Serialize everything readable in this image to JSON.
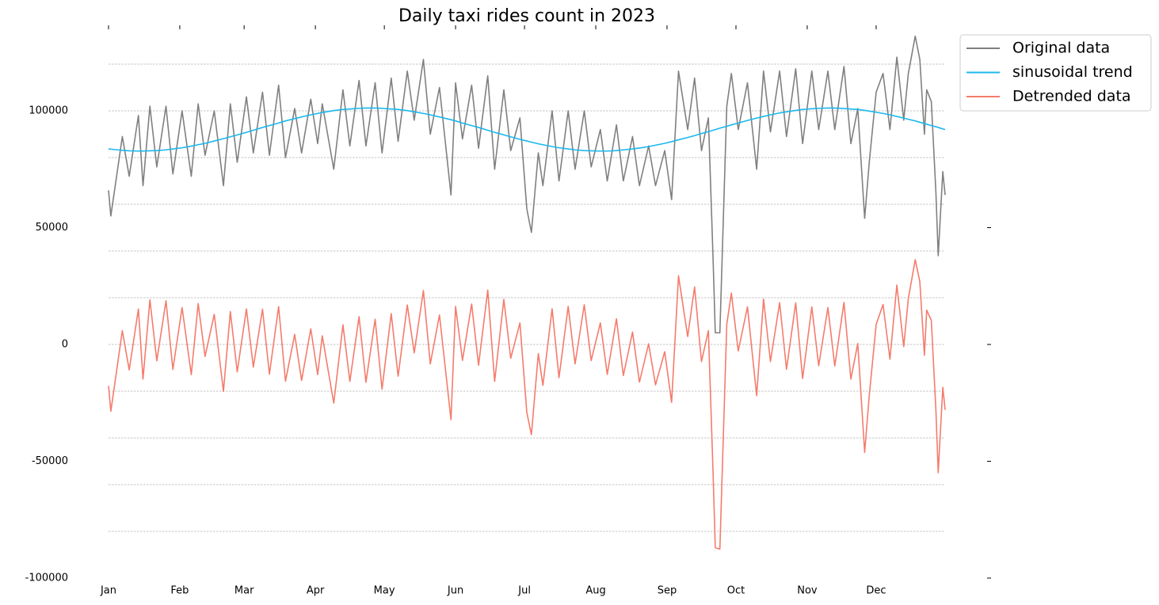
{
  "chart_data": {
    "type": "line",
    "title": "Daily taxi rides count in 2023",
    "x": [
      1,
      2,
      7,
      10,
      14,
      16,
      19,
      22,
      26,
      29,
      33,
      37,
      40,
      43,
      47,
      51,
      54,
      57,
      61,
      64,
      68,
      71,
      75,
      78,
      82,
      85,
      89,
      92,
      94,
      99,
      103,
      106,
      110,
      113,
      117,
      120,
      124,
      127,
      131,
      134,
      138,
      141,
      145,
      150,
      152,
      155,
      159,
      162,
      166,
      169,
      173,
      176,
      180,
      183,
      185,
      188,
      190,
      194,
      197,
      201,
      204,
      208,
      211,
      215,
      218,
      222,
      225,
      229,
      232,
      236,
      239,
      243,
      246,
      249,
      253,
      256,
      259,
      262,
      264,
      265,
      267,
      270,
      272,
      275,
      279,
      283,
      286,
      289,
      293,
      296,
      300,
      303,
      307,
      310,
      314,
      317,
      321,
      324,
      327,
      330,
      332,
      335,
      338,
      341,
      344,
      347,
      349,
      352,
      354,
      356,
      357,
      359,
      361,
      362,
      364,
      365
    ],
    "series": [
      {
        "name": "Original data",
        "color": "#808080",
        "values": [
          66000,
          55000,
          89000,
          72000,
          98000,
          68000,
          102000,
          76000,
          102000,
          73000,
          100000,
          72000,
          103000,
          81000,
          100000,
          68000,
          103000,
          78000,
          106000,
          82000,
          108000,
          81000,
          111000,
          80000,
          101000,
          82000,
          105000,
          86000,
          103000,
          75000,
          109000,
          85000,
          113000,
          85000,
          112000,
          82000,
          114000,
          87000,
          117000,
          96000,
          122000,
          90000,
          110000,
          64000,
          112000,
          88000,
          111000,
          84000,
          115000,
          75000,
          109000,
          83000,
          97000,
          58000,
          48000,
          82000,
          68000,
          100000,
          70000,
          100000,
          75000,
          100000,
          76000,
          92000,
          70000,
          94000,
          70000,
          89000,
          68000,
          85000,
          68000,
          83000,
          62000,
          117000,
          92000,
          114000,
          83000,
          97000,
          38000,
          5000,
          5000,
          102000,
          116000,
          92000,
          112000,
          75000,
          117000,
          91000,
          117000,
          89000,
          118000,
          86000,
          117000,
          92000,
          117000,
          92000,
          119000,
          86000,
          101000,
          54000,
          78000,
          108000,
          116000,
          92000,
          123000,
          96000,
          116000,
          132000,
          122000,
          90000,
          109000,
          104000,
          65000,
          38000,
          74000,
          64000
        ]
      },
      {
        "name": "sinusoidal trend",
        "color": "#1ab8ec",
        "values": [
          83700,
          83600,
          83100,
          82900,
          82800,
          82800,
          82900,
          83000,
          83300,
          83700,
          84200,
          84900,
          85500,
          86100,
          87100,
          88100,
          88900,
          89700,
          90800,
          91700,
          92900,
          93700,
          94800,
          95700,
          96700,
          97400,
          98300,
          98900,
          99300,
          100100,
          100600,
          100800,
          101100,
          101200,
          101200,
          101100,
          100800,
          100600,
          100100,
          99600,
          98900,
          98300,
          97400,
          96200,
          95700,
          94800,
          93700,
          92900,
          91700,
          90800,
          89700,
          88900,
          87800,
          87100,
          86600,
          85900,
          85500,
          84700,
          84200,
          83700,
          83300,
          83000,
          82900,
          82800,
          82800,
          83000,
          83300,
          83700,
          84100,
          84700,
          85300,
          86100,
          86800,
          87600,
          88600,
          89400,
          90300,
          91100,
          91700,
          92000,
          92600,
          93400,
          94000,
          94800,
          95900,
          96900,
          97600,
          98300,
          99100,
          99600,
          100200,
          100600,
          100900,
          101100,
          101200,
          101200,
          101000,
          100800,
          100600,
          100200,
          99900,
          99400,
          98900,
          98300,
          97600,
          96900,
          96400,
          95700,
          95100,
          94600,
          94300,
          93700,
          93200,
          92900,
          92300,
          92000
        ]
      },
      {
        "name": "Detrended data",
        "color": "#f47c6c",
        "values": [
          -17700,
          -28600,
          5900,
          -10900,
          15200,
          -14800,
          19100,
          -7000,
          18700,
          -10700,
          15800,
          -12900,
          17500,
          -5100,
          12900,
          -20100,
          14100,
          -11700,
          15200,
          -9700,
          15100,
          -12700,
          16200,
          -15700,
          4300,
          -15400,
          6700,
          -12900,
          3700,
          -25100,
          8400,
          -15800,
          11900,
          -16200,
          10800,
          -19100,
          13200,
          -13600,
          16900,
          -3600,
          23100,
          -8300,
          12600,
          -32200,
          16300,
          -6800,
          17300,
          -8900,
          23300,
          -15800,
          19300,
          -5900,
          9200,
          -29100,
          -38600,
          -3900,
          -17500,
          15300,
          -14200,
          16300,
          -8300,
          17000,
          -6900,
          9200,
          -12800,
          11000,
          -13300,
          5300,
          -16100,
          300,
          -17300,
          -3100,
          -24800,
          29400,
          3400,
          24600,
          -7300,
          5900,
          -53700,
          -87000,
          -87600,
          8600,
          22000,
          -2800,
          16100,
          -21900,
          19400,
          -7300,
          17900,
          -10600,
          17800,
          -14600,
          16100,
          -9100,
          15800,
          -9200,
          18000,
          -14800,
          400,
          -46200,
          -21900,
          8600,
          17100,
          -6300,
          25400,
          -900,
          19600,
          36300,
          26900,
          -4600,
          14700,
          10300,
          -28200,
          -54900,
          -18300,
          -28000
        ]
      }
    ],
    "xlim": [
      1,
      365
    ],
    "xticks": [
      {
        "value": 1,
        "label": "Jan"
      },
      {
        "value": 32,
        "label": "Feb"
      },
      {
        "value": 60,
        "label": "Mar"
      },
      {
        "value": 91,
        "label": "Apr"
      },
      {
        "value": 121,
        "label": "May"
      },
      {
        "value": 152,
        "label": "Jun"
      },
      {
        "value": 182,
        "label": "Jul"
      },
      {
        "value": 213,
        "label": "Aug"
      },
      {
        "value": 244,
        "label": "Sep"
      },
      {
        "value": 274,
        "label": "Oct"
      },
      {
        "value": 305,
        "label": "Nov"
      },
      {
        "value": 335,
        "label": "Dec"
      }
    ],
    "ylim": [
      -100000,
      135000
    ],
    "yticks": [
      -100000,
      -50000,
      0,
      50000,
      100000
    ],
    "minor_yticks": [
      -80000,
      -60000,
      -40000,
      -20000,
      0,
      20000,
      40000,
      60000,
      80000,
      100000,
      120000
    ],
    "grid": true,
    "legend": "upper right outside"
  }
}
